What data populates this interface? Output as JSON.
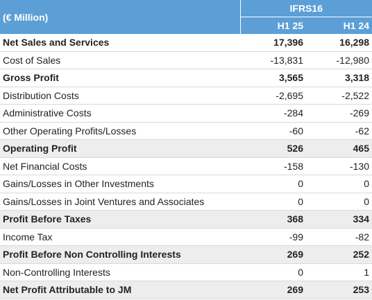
{
  "table": {
    "unit": "(€ Million)",
    "group": "IFRS16",
    "columns": [
      "H1 25",
      "H1 24"
    ],
    "rows": [
      [
        "Net Sales and Services",
        "17,396",
        "16,298"
      ],
      [
        "Cost of Sales",
        "-13,831",
        "-12,980"
      ],
      [
        "Gross Profit",
        "3,565",
        "3,318"
      ],
      [
        "Distribution Costs",
        "-2,695",
        "-2,522"
      ],
      [
        "Administrative Costs",
        "-284",
        "-269"
      ],
      [
        "Other Operating Profits/Losses",
        "-60",
        "-62"
      ],
      [
        "Operating Profit",
        "526",
        "465"
      ],
      [
        "Net Financial Costs",
        "-158",
        "-130"
      ],
      [
        "Gains/Losses in Other Investments",
        "0",
        "0"
      ],
      [
        "Gains/Losses in Joint Ventures and Associates",
        "0",
        "0"
      ],
      [
        "Profit Before Taxes",
        "368",
        "334"
      ],
      [
        "Income Tax",
        "-99",
        "-82"
      ],
      [
        "Profit Before Non Controlling Interests",
        "269",
        "252"
      ],
      [
        "Non-Controlling Interests",
        "0",
        "1"
      ],
      [
        "Net Profit Attributable to JM",
        "269",
        "253"
      ]
    ]
  }
}
